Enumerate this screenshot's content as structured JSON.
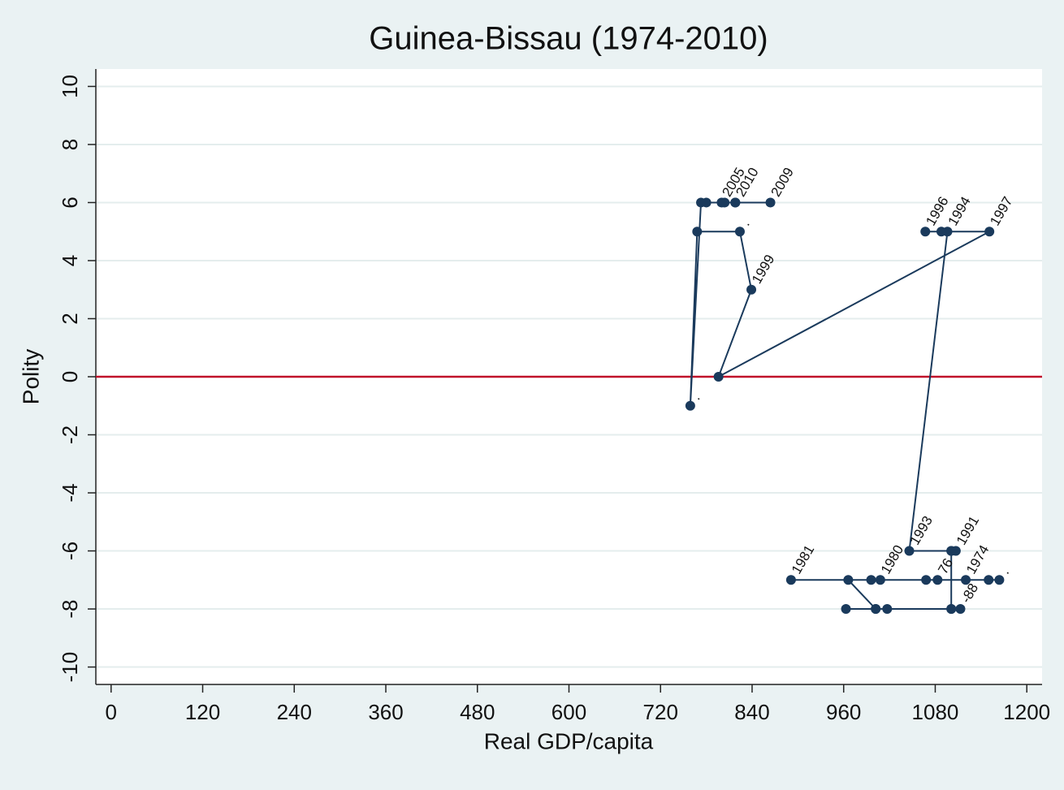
{
  "chart_data": {
    "type": "connected-scatter",
    "title": "Guinea-Bissau (1974-2010)",
    "x_label": "Real GDP/capita",
    "y_label": "Polity",
    "xlim": [
      -20,
      1220
    ],
    "ylim": [
      -10.6,
      10.6
    ],
    "xticks": [
      0,
      120,
      240,
      360,
      480,
      600,
      720,
      840,
      960,
      1080,
      1200
    ],
    "yticks": [
      -10,
      -8,
      -6,
      -4,
      -2,
      0,
      2,
      4,
      6,
      8,
      10
    ],
    "grid": true,
    "color": "#1a3a5c",
    "reference_line": {
      "y": 0,
      "color": "#c0102a"
    },
    "series": [
      {
        "name": "Guinea-Bissau",
        "color": "#1a3a5c",
        "x": [
          1120,
          1164,
          1083,
          1068,
          1150,
          996,
          1008,
          891,
          966,
          1002,
          1017,
          963,
          1002,
          1101,
          1113,
          1101,
          1101,
          1107,
          1101,
          1046,
          1096,
          1088,
          1067,
          1151,
          796,
          839,
          824,
          768,
          759,
          773,
          780,
          800,
          804,
          818,
          818,
          864,
          818
        ],
        "values": [
          -7,
          -7,
          -7,
          -7,
          -7,
          -7,
          -7,
          -7,
          -7,
          -8,
          -8,
          -8,
          -8,
          -8,
          -8,
          -8,
          -6,
          -6,
          -6,
          -6,
          5,
          5,
          5,
          5,
          0,
          3,
          5,
          5,
          -1,
          6,
          6,
          6,
          6,
          6,
          6,
          6,
          6
        ],
        "point_labels": [
          "1974",
          ".",
          "76",
          null,
          null,
          null,
          "1980",
          "1981",
          null,
          null,
          null,
          null,
          null,
          null,
          "-88",
          null,
          null,
          "1991",
          null,
          "1993",
          "1994",
          null,
          "1996",
          "1997",
          null,
          "1999",
          ".",
          null,
          ".",
          null,
          null,
          "2005",
          null,
          null,
          null,
          "2009",
          "2010"
        ]
      }
    ]
  }
}
